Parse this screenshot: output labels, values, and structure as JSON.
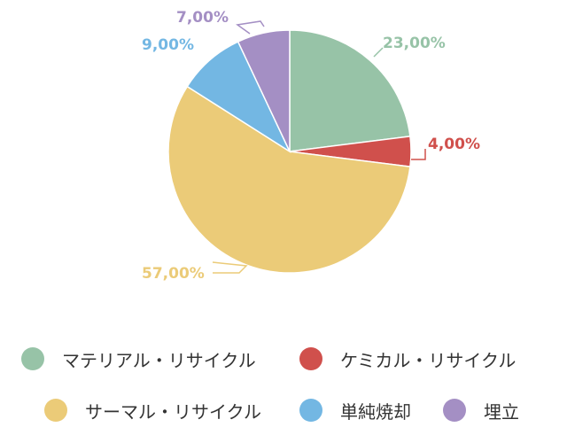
{
  "chart_data": {
    "type": "pie",
    "categories": [
      "マテリアル・リサイクル",
      "ケミカル・リサイクル",
      "サーマル・リサイクル",
      "単純焼却",
      "埋立"
    ],
    "values": [
      23,
      4,
      57,
      9,
      7
    ],
    "value_labels": [
      "23,00%",
      "4,00%",
      "57,00%",
      "9,00%",
      "7,00%"
    ],
    "colors": [
      "#97c3a7",
      "#d0504c",
      "#ebcb78",
      "#73b7e3",
      "#a48fc4"
    ],
    "title": "",
    "legend_position": "bottom"
  },
  "legend": {
    "items": [
      {
        "label": "マテリアル・リサイクル",
        "color": "#97c3a7"
      },
      {
        "label": "ケミカル・リサイクル",
        "color": "#d0504c"
      },
      {
        "label": "サーマル・リサイクル",
        "color": "#ebcb78"
      },
      {
        "label": "単純焼却",
        "color": "#73b7e3"
      },
      {
        "label": "埋立",
        "color": "#a48fc4"
      }
    ]
  }
}
